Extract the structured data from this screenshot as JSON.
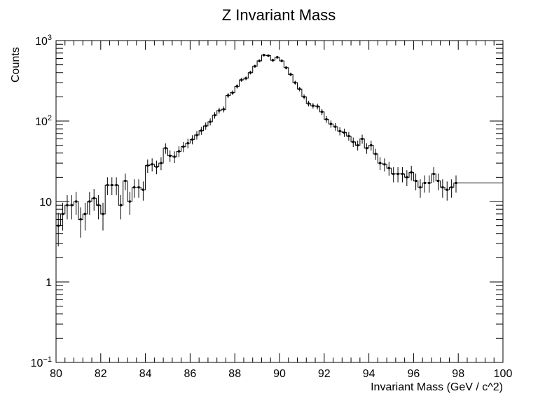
{
  "chart_data": {
    "type": "histogram",
    "title": "Z Invariant Mass",
    "xlabel": "Invariant Mass (GeV / c^2)",
    "ylabel": "Counts",
    "x_range": [
      80,
      100
    ],
    "ylim": [
      0.1,
      1000
    ],
    "y_scale": "log",
    "grid": false,
    "legend": "none",
    "bin_width": 0.2,
    "x_ticks": [
      "80",
      "82",
      "84",
      "86",
      "88",
      "90",
      "92",
      "94",
      "96",
      "98",
      "100"
    ],
    "y_ticks": [
      {
        "value": 0.1,
        "base": "10",
        "exp": "−1"
      },
      {
        "value": 1,
        "base": "1",
        "exp": ""
      },
      {
        "value": 10,
        "base": "10",
        "exp": ""
      },
      {
        "value": 100,
        "base": "10",
        "exp": "2"
      },
      {
        "value": 1000,
        "base": "10",
        "exp": "3"
      }
    ],
    "values": [
      5,
      7,
      9,
      9,
      10,
      6,
      7,
      10,
      11,
      9,
      7,
      16,
      16,
      16,
      9,
      18,
      10,
      15,
      15,
      14,
      28,
      29,
      27,
      30,
      46,
      37,
      36,
      42,
      48,
      53,
      59,
      67,
      76,
      87,
      98,
      118,
      135,
      140,
      208,
      225,
      270,
      325,
      340,
      400,
      480,
      560,
      660,
      650,
      570,
      620,
      560,
      460,
      380,
      300,
      250,
      200,
      165,
      155,
      152,
      130,
      105,
      92,
      85,
      75,
      72,
      65,
      55,
      50,
      60,
      46,
      50,
      39,
      30,
      29,
      26,
      22,
      22,
      22,
      20,
      23,
      18,
      15,
      17,
      17,
      22,
      18,
      15,
      14,
      15,
      17
    ]
  }
}
